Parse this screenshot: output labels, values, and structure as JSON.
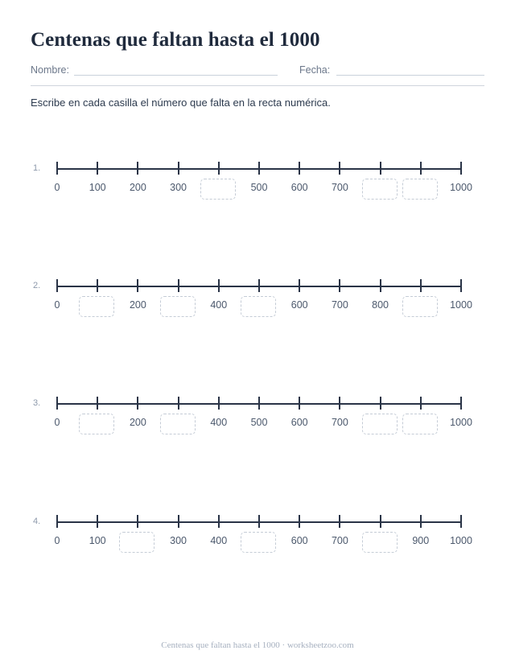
{
  "title": "Centenas que faltan hasta el 1000",
  "name_label": "Nombre:",
  "date_label": "Fecha:",
  "instructions": "Escribe en cada casilla el número que falta en la recta numérica.",
  "number_lines": [
    {
      "number": "1.",
      "values": [
        "0",
        "100",
        "200",
        "300",
        null,
        "500",
        "600",
        "700",
        null,
        null,
        "1000"
      ]
    },
    {
      "number": "2.",
      "values": [
        "0",
        null,
        "200",
        null,
        "400",
        null,
        "600",
        "700",
        "800",
        null,
        "1000"
      ]
    },
    {
      "number": "3.",
      "values": [
        "0",
        null,
        "200",
        null,
        "400",
        "500",
        "600",
        "700",
        null,
        null,
        "1000"
      ]
    },
    {
      "number": "4.",
      "values": [
        "0",
        "100",
        null,
        "300",
        "400",
        null,
        "600",
        "700",
        null,
        "900",
        "1000"
      ]
    }
  ],
  "footer": "Centenas que faltan hasta el 1000 · worksheetzoo.com"
}
